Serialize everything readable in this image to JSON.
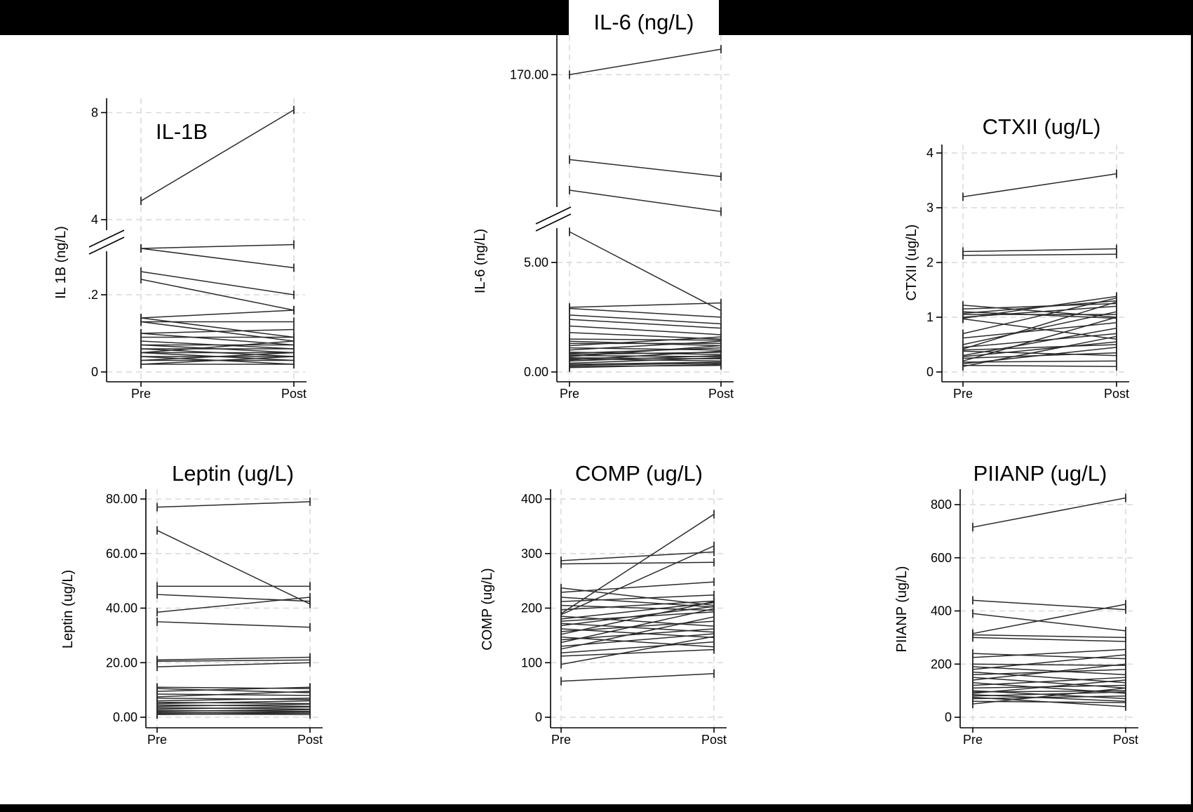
{
  "figure_colors": {
    "frame": "#000000",
    "background": "#ffffff",
    "lines": "#2b2b2b",
    "grid": "#d9d9d9"
  },
  "chart_data": [
    {
      "type": "line",
      "title": "IL-1B",
      "ylabel": "IL 1B (ng/L)",
      "categories": [
        "Pre",
        "Post"
      ],
      "y_tick_labels": [
        "0",
        ".2",
        "4",
        "8"
      ],
      "y_break": true,
      "series_pre_post": [
        [
          4.7,
          8.1
        ],
        [
          0.32,
          0.33
        ],
        [
          0.32,
          0.27
        ],
        [
          0.26,
          0.2
        ],
        [
          0.24,
          0.16
        ],
        [
          0.14,
          0.16
        ],
        [
          0.13,
          0.13
        ],
        [
          0.14,
          0.09
        ],
        [
          0.13,
          0.08
        ],
        [
          0.1,
          0.11
        ],
        [
          0.1,
          0.07
        ],
        [
          0.09,
          0.09
        ],
        [
          0.08,
          0.06
        ],
        [
          0.07,
          0.07
        ],
        [
          0.07,
          0.05
        ],
        [
          0.06,
          0.04
        ],
        [
          0.06,
          0.06
        ],
        [
          0.05,
          0.08
        ],
        [
          0.05,
          0.03
        ],
        [
          0.05,
          0.05
        ],
        [
          0.04,
          0.04
        ],
        [
          0.04,
          0.02
        ],
        [
          0.03,
          0.05
        ],
        [
          0.03,
          0.03
        ],
        [
          0.02,
          0.04
        ],
        [
          0.02,
          0.02
        ]
      ]
    },
    {
      "type": "line",
      "title": "IL-6 (ng/L)",
      "ylabel": "IL-6 (ng/L)",
      "categories": [
        "Pre",
        "Post"
      ],
      "y_tick_labels": [
        "0.00",
        "5.00",
        "170.00"
      ],
      "y_break": true,
      "series_pre_post": [
        [
          170,
          185
        ],
        [
          120,
          110
        ],
        [
          102,
          85
        ],
        [
          6.4,
          2.8
        ],
        [
          2.95,
          3.15
        ],
        [
          2.9,
          2.5
        ],
        [
          2.6,
          2.2
        ],
        [
          2.4,
          2.0
        ],
        [
          2.1,
          1.7
        ],
        [
          1.8,
          1.5
        ],
        [
          1.5,
          1.45
        ],
        [
          1.4,
          1.2
        ],
        [
          1.3,
          1.3
        ],
        [
          1.2,
          1.6
        ],
        [
          1.1,
          1.0
        ],
        [
          1.0,
          1.4
        ],
        [
          0.9,
          0.8
        ],
        [
          0.85,
          1.1
        ],
        [
          0.8,
          0.9
        ],
        [
          0.75,
          0.7
        ],
        [
          0.7,
          1.2
        ],
        [
          0.65,
          0.6
        ],
        [
          0.6,
          0.5
        ],
        [
          0.55,
          0.95
        ],
        [
          0.5,
          0.75
        ],
        [
          0.4,
          0.65
        ],
        [
          0.35,
          0.45
        ],
        [
          0.3,
          0.4
        ],
        [
          0.25,
          0.3
        ],
        [
          0.2,
          0.35
        ]
      ]
    },
    {
      "type": "line",
      "title": "CTXII (ug/L)",
      "ylabel": "CTXII (ug/L)",
      "categories": [
        "Pre",
        "Post"
      ],
      "y_tick_labels": [
        "0",
        "1",
        "2",
        "3",
        "4"
      ],
      "ylim": [
        0,
        4
      ],
      "series_pre_post": [
        [
          3.2,
          3.62
        ],
        [
          2.2,
          2.25
        ],
        [
          2.13,
          2.15
        ],
        [
          1.22,
          1.0
        ],
        [
          1.15,
          1.25
        ],
        [
          1.1,
          0.98
        ],
        [
          1.07,
          1.3
        ],
        [
          1.05,
          1.05
        ],
        [
          1.0,
          1.2
        ],
        [
          0.98,
          1.38
        ],
        [
          0.97,
          0.6
        ],
        [
          0.7,
          1.35
        ],
        [
          0.62,
          0.9
        ],
        [
          0.5,
          1.1
        ],
        [
          0.45,
          0.7
        ],
        [
          0.42,
          1.28
        ],
        [
          0.4,
          0.5
        ],
        [
          0.38,
          0.3
        ],
        [
          0.3,
          0.8
        ],
        [
          0.28,
          0.55
        ],
        [
          0.25,
          0.35
        ],
        [
          0.2,
          1.0
        ],
        [
          0.18,
          0.2
        ],
        [
          0.15,
          0.45
        ],
        [
          0.12,
          0.1
        ],
        [
          0.1,
          0.65
        ]
      ]
    },
    {
      "type": "line",
      "title": "Leptin (ug/L)",
      "ylabel": "Leptin (ug/L)",
      "categories": [
        "Pre",
        "Post"
      ],
      "y_tick_labels": [
        "0.00",
        "20.00",
        "40.00",
        "60.00",
        "80.00"
      ],
      "ylim": [
        0,
        80
      ],
      "series_pre_post": [
        [
          77,
          79
        ],
        [
          68.5,
          41.5
        ],
        [
          48,
          48
        ],
        [
          45,
          42.5
        ],
        [
          38.5,
          44
        ],
        [
          35,
          33
        ],
        [
          21,
          22
        ],
        [
          20.5,
          21
        ],
        [
          18.5,
          20
        ],
        [
          11,
          10.5
        ],
        [
          10.5,
          9
        ],
        [
          9.5,
          11
        ],
        [
          8.5,
          8
        ],
        [
          7.5,
          9.5
        ],
        [
          7,
          6.5
        ],
        [
          6,
          7
        ],
        [
          5.5,
          5
        ],
        [
          5,
          6
        ],
        [
          4.5,
          4
        ],
        [
          4,
          4.8
        ],
        [
          3.5,
          3
        ],
        [
          3,
          3.8
        ],
        [
          2.5,
          2.2
        ],
        [
          2.2,
          2.8
        ],
        [
          1.8,
          1.5
        ],
        [
          1.5,
          2
        ],
        [
          1.2,
          1
        ],
        [
          1,
          1.5
        ]
      ]
    },
    {
      "type": "line",
      "title": "COMP (ug/L)",
      "ylabel": "COMP (ug/L)",
      "categories": [
        "Pre",
        "Post"
      ],
      "y_tick_labels": [
        "0",
        "100",
        "200",
        "300",
        "400"
      ],
      "ylim": [
        0,
        400
      ],
      "series_pre_post": [
        [
          287,
          303
        ],
        [
          281,
          284
        ],
        [
          237,
          205
        ],
        [
          229,
          248
        ],
        [
          220,
          202
        ],
        [
          212,
          224
        ],
        [
          205,
          196
        ],
        [
          197,
          213
        ],
        [
          190,
          372
        ],
        [
          188,
          314
        ],
        [
          185,
          167
        ],
        [
          180,
          210
        ],
        [
          176,
          193
        ],
        [
          172,
          156
        ],
        [
          168,
          203
        ],
        [
          162,
          146
        ],
        [
          157,
          176
        ],
        [
          152,
          212
        ],
        [
          147,
          129
        ],
        [
          142,
          162
        ],
        [
          137,
          199
        ],
        [
          130,
          153
        ],
        [
          125,
          184
        ],
        [
          118,
          138
        ],
        [
          112,
          124
        ],
        [
          97,
          148
        ],
        [
          66,
          80
        ]
      ]
    },
    {
      "type": "line",
      "title": "PIIANP (ug/L)",
      "ylabel": "PIIANP (ug/L)",
      "categories": [
        "Pre",
        "Post"
      ],
      "y_tick_labels": [
        "0",
        "200",
        "400",
        "600",
        "800"
      ],
      "ylim": [
        0,
        850
      ],
      "series_pre_post": [
        [
          715,
          825
        ],
        [
          440,
          405
        ],
        [
          390,
          325
        ],
        [
          315,
          425
        ],
        [
          310,
          300
        ],
        [
          300,
          285
        ],
        [
          240,
          220
        ],
        [
          225,
          255
        ],
        [
          200,
          195
        ],
        [
          190,
          160
        ],
        [
          180,
          235
        ],
        [
          170,
          130
        ],
        [
          160,
          180
        ],
        [
          150,
          110
        ],
        [
          140,
          200
        ],
        [
          130,
          90
        ],
        [
          120,
          150
        ],
        [
          110,
          120
        ],
        [
          100,
          70
        ],
        [
          95,
          100
        ],
        [
          90,
          140
        ],
        [
          85,
          60
        ],
        [
          80,
          95
        ],
        [
          75,
          40
        ],
        [
          70,
          80
        ],
        [
          60,
          55
        ],
        [
          50,
          110
        ]
      ]
    }
  ]
}
